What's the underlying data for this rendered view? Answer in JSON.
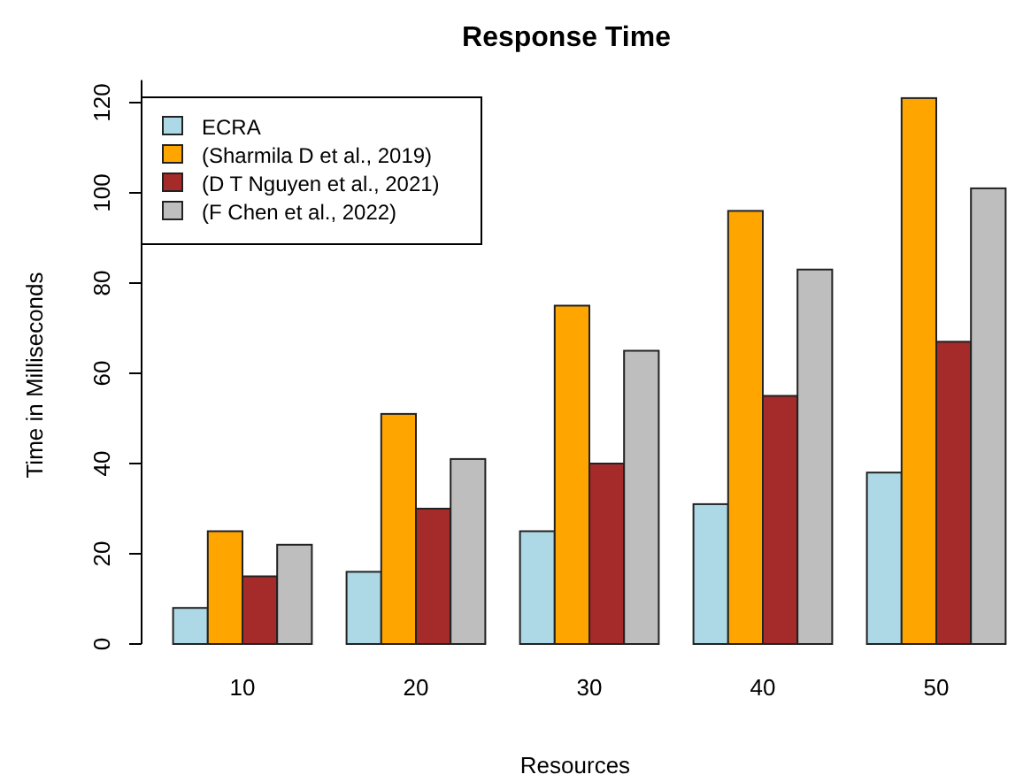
{
  "chart_data": {
    "type": "bar",
    "title": "Response Time",
    "xlabel": "Resources",
    "ylabel": "Time in Milliseconds",
    "categories": [
      "10",
      "20",
      "30",
      "40",
      "50"
    ],
    "series": [
      {
        "name": "ECRA",
        "color": "#add8e6",
        "values": [
          8,
          16,
          25,
          31,
          38
        ]
      },
      {
        "name": "(Sharmila D et al., 2019)",
        "color": "#ffa500",
        "values": [
          25,
          51,
          75,
          96,
          121
        ]
      },
      {
        "name": "(D T Nguyen et al., 2021)",
        "color": "#a52a2a",
        "values": [
          15,
          30,
          40,
          55,
          67
        ]
      },
      {
        "name": "(F Chen et al., 2022)",
        "color": "#bebebe",
        "values": [
          22,
          41,
          65,
          83,
          101
        ]
      }
    ],
    "ylim": [
      0,
      125
    ],
    "yticks": [
      0,
      20,
      40,
      60,
      80,
      100,
      120
    ],
    "grid": false,
    "legend": "top left"
  }
}
